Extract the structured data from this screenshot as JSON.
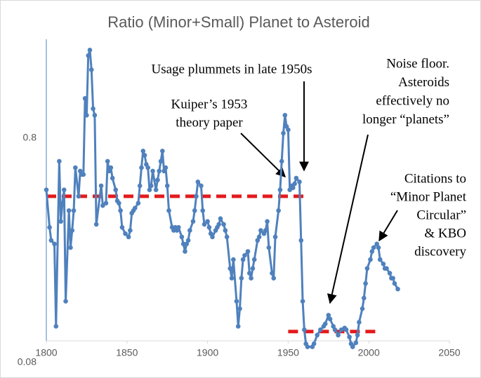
{
  "chart_data": {
    "type": "line",
    "title": "Ratio (Minor+Small) Planet to Asteroid",
    "x": [
      1800,
      1802,
      1803,
      1805,
      1806,
      1808,
      1809,
      1810,
      1811,
      1812,
      1814,
      1815,
      1816,
      1817,
      1818,
      1820,
      1821,
      1822,
      1823,
      1824,
      1825,
      1826,
      1827,
      1828,
      1829,
      1830,
      1831,
      1834,
      1835,
      1837,
      1838,
      1839,
      1840,
      1841,
      1843,
      1844,
      1845,
      1846,
      1847,
      1849,
      1851,
      1852,
      1853,
      1854,
      1855,
      1857,
      1858,
      1859,
      1860,
      1861,
      1862,
      1863,
      1864,
      1865,
      1866,
      1868,
      1869,
      1870,
      1871,
      1872,
      1873,
      1874,
      1875,
      1876,
      1878,
      1879,
      1880,
      1881,
      1882,
      1884,
      1885,
      1886,
      1887,
      1888,
      1889,
      1891,
      1892,
      1893,
      1894,
      1896,
      1897,
      1898,
      1900,
      1901,
      1902,
      1903,
      1905,
      1906,
      1907,
      1908,
      1910,
      1911,
      1912,
      1914,
      1915,
      1916,
      1918,
      1919,
      1920,
      1921,
      1922,
      1923,
      1925,
      1926,
      1927,
      1928,
      1929,
      1931,
      1932,
      1933,
      1935,
      1936,
      1937,
      1938,
      1940,
      1941,
      1942,
      1944,
      1945,
      1946,
      1947,
      1948,
      1949,
      1950,
      1951,
      1952,
      1953,
      1954,
      1955,
      1957,
      1958,
      1959,
      1960,
      1961,
      1962,
      1965,
      1966,
      1968,
      1970,
      1972,
      1973,
      1975,
      1976,
      1978,
      1979,
      1981,
      1983,
      1985,
      1986,
      1988,
      1989,
      1990,
      1992,
      1993,
      1994,
      1996,
      1997,
      1998,
      1999,
      2001,
      2002,
      2003,
      2005,
      2006,
      2007,
      2009,
      2010,
      2011,
      2013,
      2014,
      2015,
      2016,
      2018
    ],
    "series": [
      {
        "name": "Ratio",
        "color": "#4f81bd",
        "values": [
          0.47,
          0.32,
          0.28,
          0.27,
          0.116,
          0.63,
          0.34,
          0.41,
          0.47,
          0.15,
          0.38,
          0.26,
          0.31,
          0.38,
          0.59,
          0.44,
          0.57,
          0.55,
          0.55,
          1.2,
          1.01,
          1.86,
          1.97,
          1.61,
          1.08,
          1.01,
          0.33,
          0.49,
          0.4,
          0.41,
          0.63,
          0.57,
          0.59,
          0.53,
          0.47,
          0.42,
          0.41,
          0.38,
          0.32,
          0.3,
          0.29,
          0.31,
          0.37,
          0.38,
          0.39,
          0.41,
          0.49,
          0.59,
          0.7,
          0.67,
          0.61,
          0.59,
          0.47,
          0.49,
          0.57,
          0.47,
          0.52,
          0.57,
          0.63,
          0.7,
          0.57,
          0.59,
          0.49,
          0.38,
          0.32,
          0.31,
          0.32,
          0.31,
          0.32,
          0.29,
          0.27,
          0.25,
          0.27,
          0.28,
          0.31,
          0.34,
          0.38,
          0.44,
          0.51,
          0.49,
          0.38,
          0.33,
          0.34,
          0.32,
          0.3,
          0.29,
          0.31,
          0.32,
          0.33,
          0.35,
          0.33,
          0.31,
          0.29,
          0.21,
          0.19,
          0.23,
          0.15,
          0.116,
          0.139,
          0.19,
          0.23,
          0.24,
          0.25,
          0.2,
          0.19,
          0.21,
          0.23,
          0.28,
          0.29,
          0.31,
          0.3,
          0.31,
          0.34,
          0.26,
          0.2,
          0.19,
          0.29,
          0.38,
          0.47,
          0.63,
          0.84,
          1.01,
          0.9,
          0.87,
          0.47,
          0.49,
          0.48,
          0.5,
          0.53,
          0.51,
          0.28,
          0.15,
          0.112,
          0.097,
          0.094,
          0.094,
          0.097,
          0.106,
          0.112,
          0.116,
          0.119,
          0.13,
          0.125,
          0.116,
          0.112,
          0.106,
          0.112,
          0.114,
          0.112,
          0.104,
          0.097,
          0.094,
          0.098,
          0.106,
          0.121,
          0.139,
          0.155,
          0.18,
          0.21,
          0.23,
          0.25,
          0.26,
          0.27,
          0.26,
          0.23,
          0.22,
          0.21,
          0.21,
          0.2,
          0.19,
          0.19,
          0.18,
          0.17
        ]
      }
    ],
    "xlim": [
      1800,
      2050
    ],
    "xticks": [
      1800,
      1850,
      1900,
      1950,
      2000,
      2050
    ],
    "ylim": [
      0.08,
      2.2
    ],
    "yticks": [
      0.08,
      0.8
    ],
    "log_scale": true,
    "xaxis_at": 0.1,
    "grid": false,
    "reference_lines": [
      {
        "value": 0.44,
        "x": [
          1800,
          1960
        ],
        "color": "#e41a1c"
      },
      {
        "value": 0.11,
        "x": [
          1950,
          2005
        ],
        "color": "#e41a1c"
      }
    ],
    "annotations": [
      {
        "lines": [
          "Usage plummets in late 1950s"
        ]
      },
      {
        "lines": [
          "Kuiper’s 1953",
          "theory paper"
        ]
      },
      {
        "lines": [
          "Noise floor.",
          "Asteroids",
          "effectively no",
          "longer “planets”"
        ]
      },
      {
        "lines": [
          "Citations to",
          "“Minor Planet",
          "Circular”",
          "& KBO",
          "discovery"
        ]
      }
    ]
  }
}
